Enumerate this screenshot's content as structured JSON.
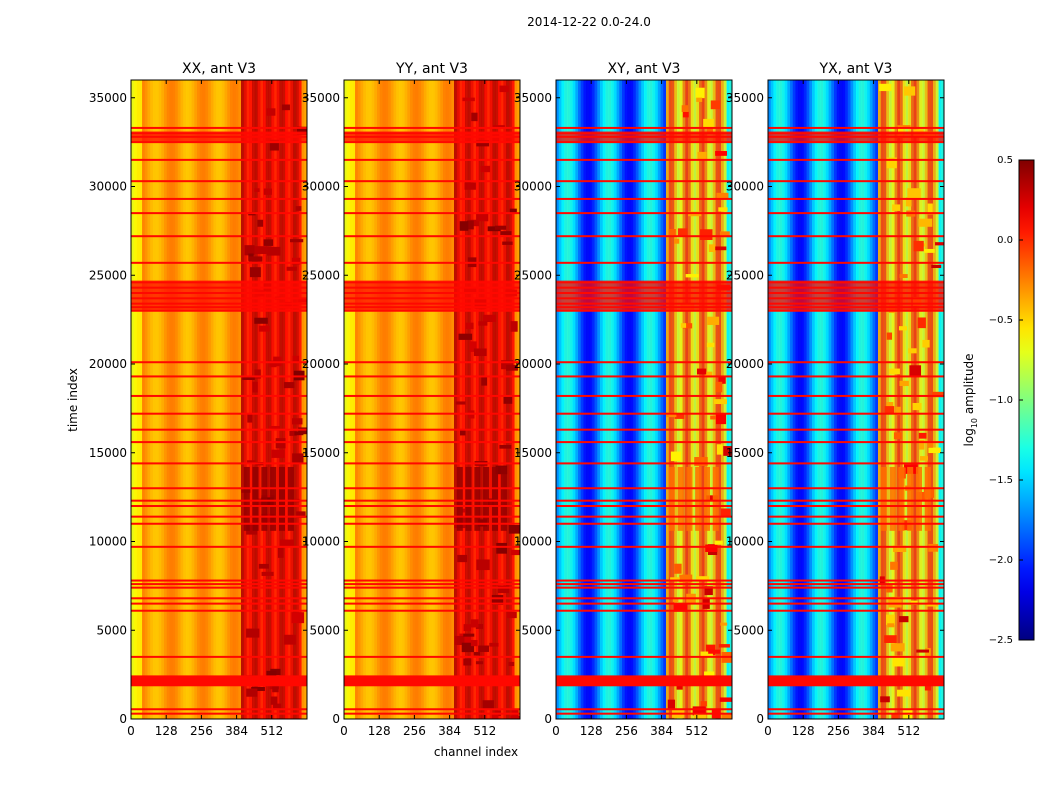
{
  "figure_title": "2014-12-22 0.0-24.0",
  "chart_data": {
    "type": "heatmap",
    "suptitle": "2014-12-22 0.0-24.0",
    "xlabel": "channel index",
    "ylabel": "time index",
    "xlim": [
      0,
      640
    ],
    "ylim": [
      0,
      36000
    ],
    "x_ticks": [
      0,
      128,
      256,
      384,
      512
    ],
    "y_ticks": [
      0,
      5000,
      10000,
      15000,
      20000,
      25000,
      30000,
      35000
    ],
    "colorbar": {
      "label": "log10 amplitude",
      "range": [
        -2.5,
        0.5
      ],
      "ticks": [
        -2.5,
        -2.0,
        -1.5,
        -1.0,
        -0.5,
        0.0,
        0.5
      ],
      "tick_labels": [
        "−2.5",
        "−2.0",
        "−1.5",
        "−1.0",
        "−0.5",
        "0.0",
        "0.5"
      ],
      "colormap": "jet"
    },
    "panels": [
      {
        "title": "XX, ant V3",
        "base_level": -0.35,
        "rfi_level": 0.2,
        "kind": "auto"
      },
      {
        "title": "YY, ant V3",
        "base_level": -0.35,
        "rfi_level": 0.2,
        "kind": "auto"
      },
      {
        "title": "XY, ant V3",
        "base_level": -1.8,
        "rfi_level": -0.4,
        "kind": "cross"
      },
      {
        "title": "YX, ant V3",
        "base_level": -1.8,
        "rfi_level": -0.4,
        "kind": "cross"
      }
    ],
    "rfi_channel_range": [
      400,
      610
    ],
    "flagged_time_rows": [
      300,
      550,
      1900,
      2000,
      2100,
      2200,
      2300,
      2400,
      3500,
      6100,
      6500,
      6800,
      7400,
      7600,
      7800,
      9700,
      11000,
      11400,
      12000,
      12300,
      13000,
      14400,
      15600,
      16300,
      17200,
      18200,
      19300,
      20100,
      23000,
      23200,
      23400,
      23700,
      24000,
      24300,
      24600,
      25700,
      27200,
      28500,
      29300,
      30300,
      31500,
      32500,
      32800,
      33000,
      33300
    ],
    "flag_level": 0.1
  }
}
